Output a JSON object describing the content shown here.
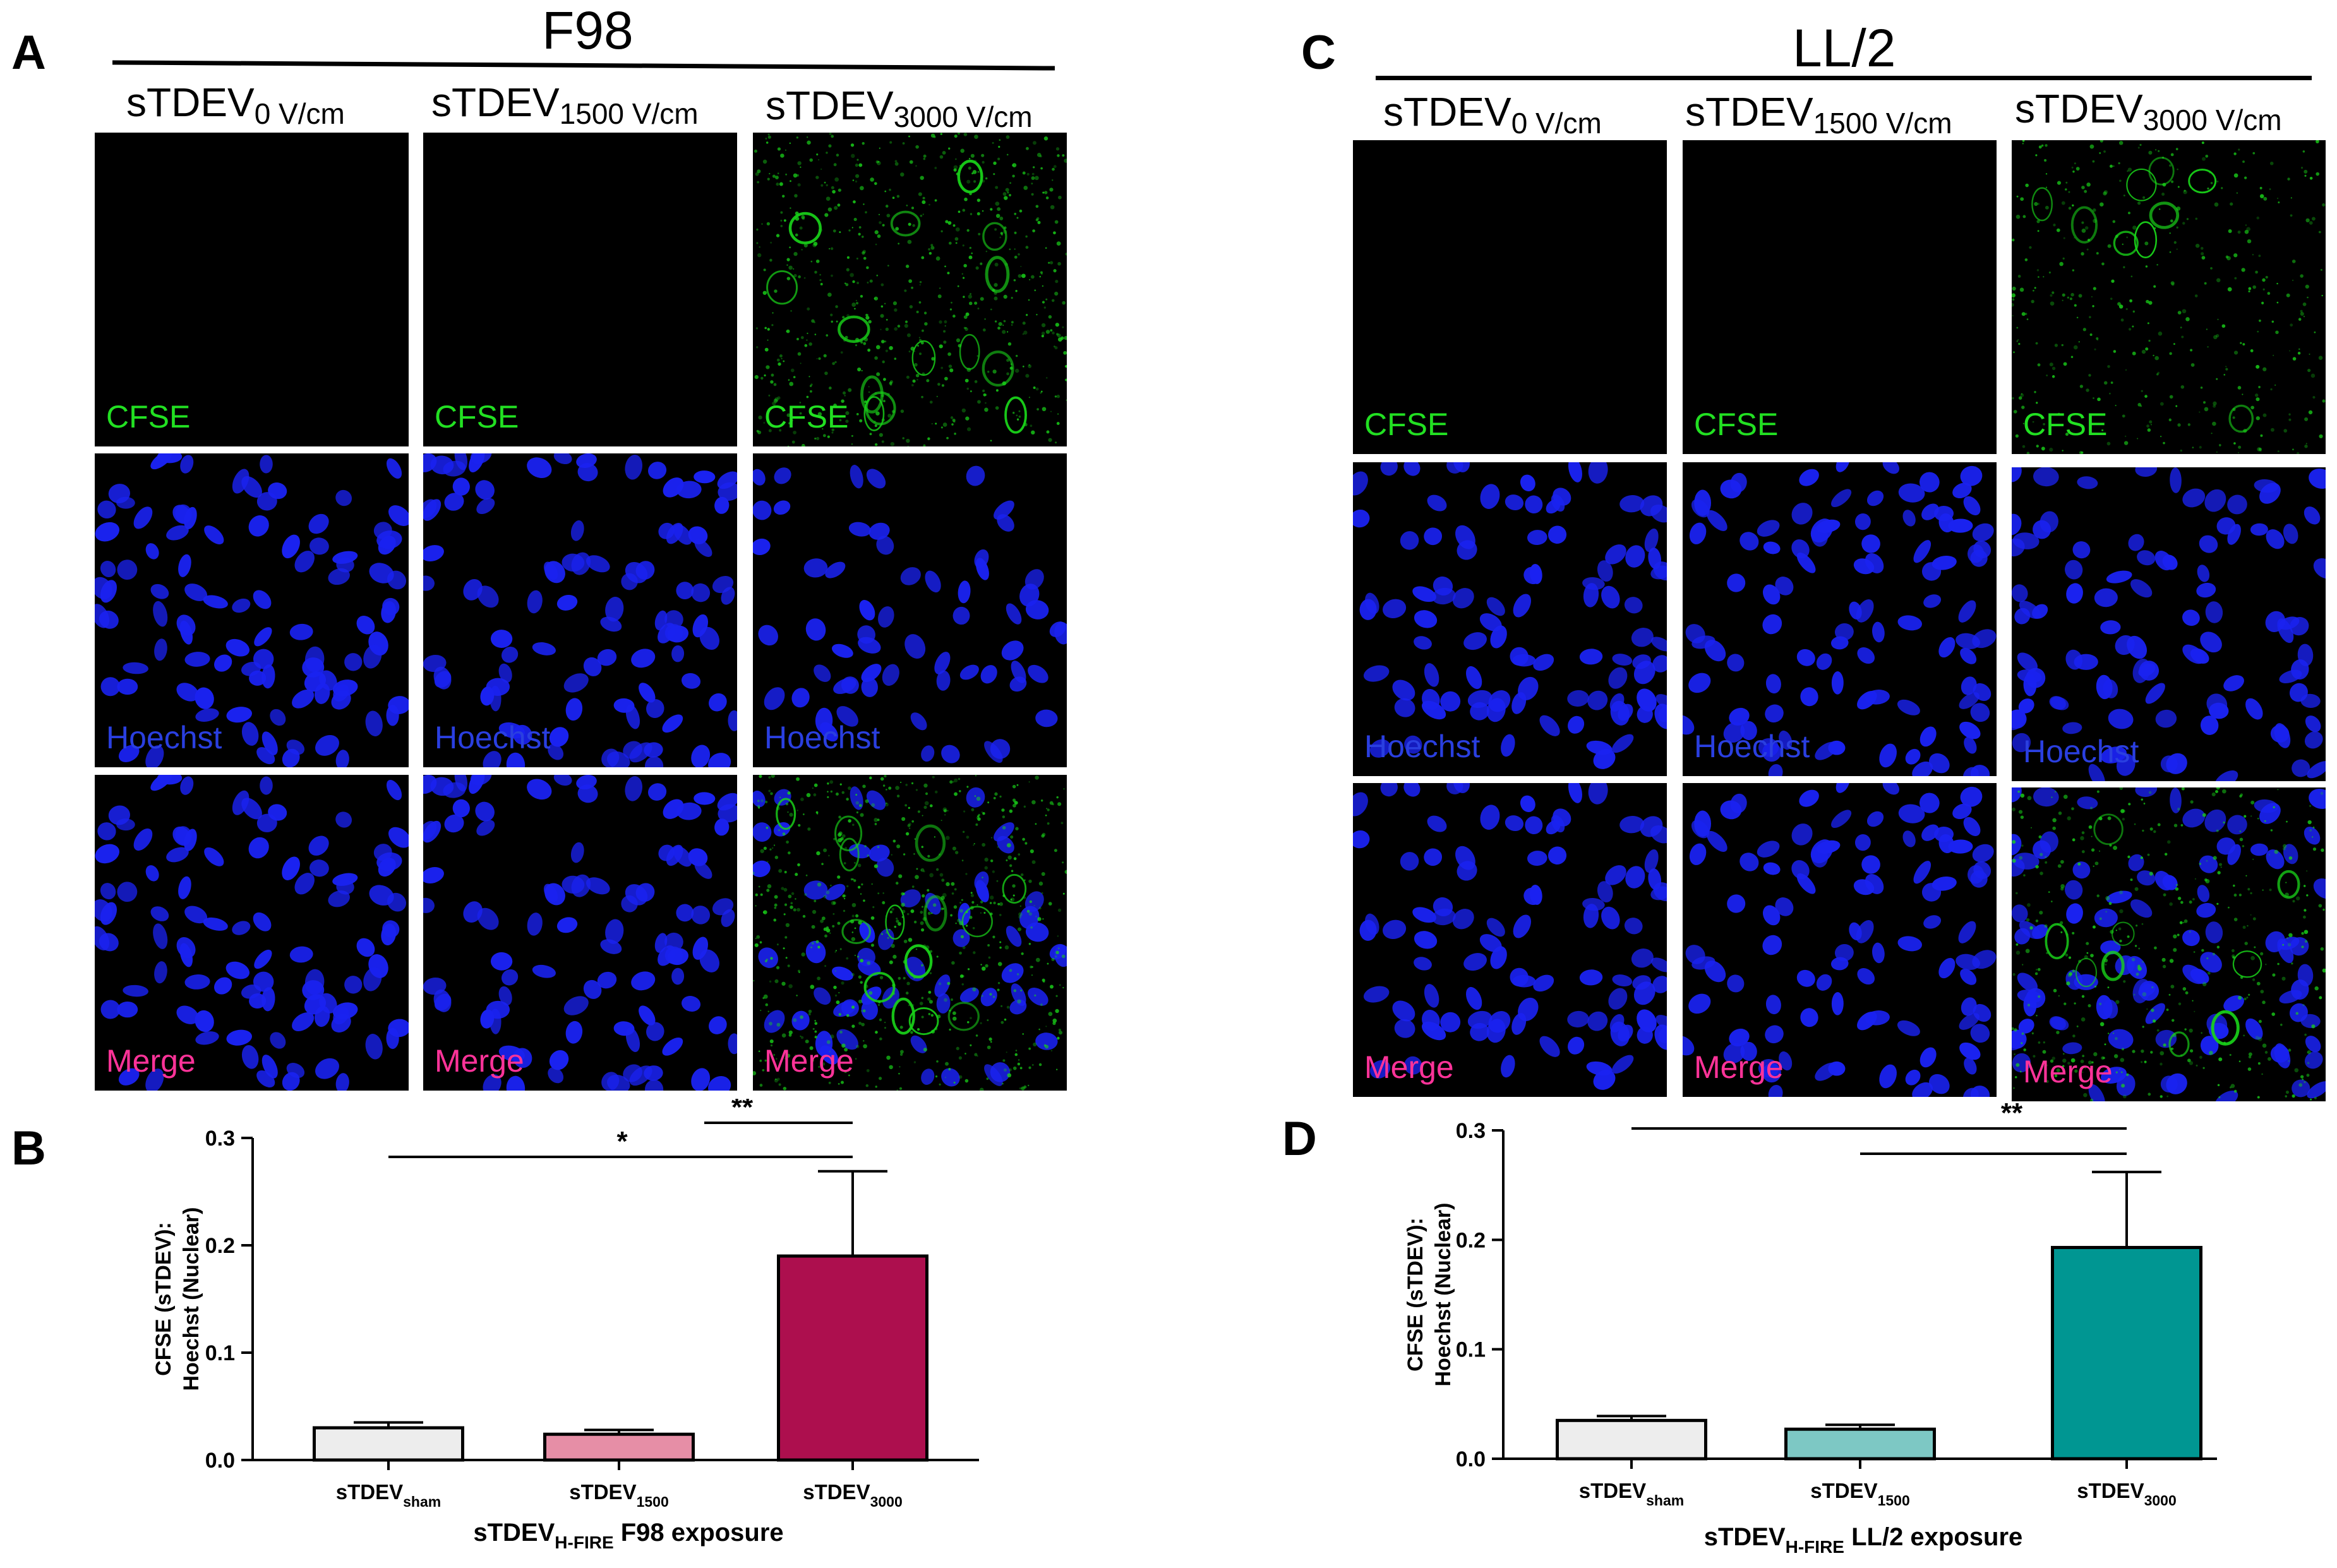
{
  "panels": {
    "A": {
      "letter": "A",
      "group_title": "F98",
      "columns": [
        {
          "prefix": "sTDEV",
          "sub": "0 V/cm"
        },
        {
          "prefix": "sTDEV",
          "sub": "1500 V/cm"
        },
        {
          "prefix": "sTDEV",
          "sub": "3000 V/cm"
        }
      ]
    },
    "C": {
      "letter": "C",
      "group_title": "LL/2",
      "columns": [
        {
          "prefix": "sTDEV",
          "sub": "0 V/cm"
        },
        {
          "prefix": "sTDEV",
          "sub": "1500 V/cm"
        },
        {
          "prefix": "sTDEV",
          "sub": "3000 V/cm"
        }
      ]
    },
    "B": {
      "letter": "B"
    },
    "D": {
      "letter": "D"
    }
  },
  "channel_labels": {
    "cfse": "CFSE",
    "hoechst": "Hoechst",
    "merge": "Merge"
  },
  "colors": {
    "cfse_label": "#22e022",
    "hoechst_label": "#2a3fe0",
    "merge_label": "#ff3399",
    "nucleus": "#1a22f0",
    "cfse_signal": "#19d319",
    "f98_sham": "#ededed",
    "f98_1500": "#e68ea6",
    "f98_3000": "#ad0f4e",
    "ll2_sham": "#ededed",
    "ll2_1500": "#7dc8c4",
    "ll2_3000": "#009692"
  },
  "chart_data": [
    {
      "type": "bar",
      "panel": "B",
      "ylabel_line1": "CFSE (sTDEV):",
      "ylabel_line2": "Hoechst (Nuclear)",
      "xlabel_prefix": "sTDEV",
      "xlabel_sub": "H-FIRE",
      "xlabel_suffix": " F98 exposure",
      "categories": [
        {
          "prefix": "sTDEV",
          "sub": "sham"
        },
        {
          "prefix": "sTDEV",
          "sub": "1500"
        },
        {
          "prefix": "sTDEV",
          "sub": "3000"
        }
      ],
      "values": [
        0.03,
        0.024,
        0.19
      ],
      "errors": [
        0.005,
        0.004,
        0.079
      ],
      "ylim": [
        0,
        0.3
      ],
      "yticks": [
        "0.0",
        "0.1",
        "0.2",
        "0.3"
      ],
      "significance": [
        {
          "from": 1,
          "to": 2,
          "label": "**"
        },
        {
          "from": 0,
          "to": 2,
          "label": "*"
        }
      ]
    },
    {
      "type": "bar",
      "panel": "D",
      "ylabel_line1": "CFSE (sTDEV):",
      "ylabel_line2": "Hoechst (Nuclear)",
      "xlabel_prefix": "sTDEV",
      "xlabel_sub": "H-FIRE",
      "xlabel_suffix": " LL/2 exposure",
      "categories": [
        {
          "prefix": "sTDEV",
          "sub": "sham"
        },
        {
          "prefix": "sTDEV",
          "sub": "1500"
        },
        {
          "prefix": "sTDEV",
          "sub": "3000"
        }
      ],
      "values": [
        0.035,
        0.027,
        0.193
      ],
      "errors": [
        0.004,
        0.004,
        0.069
      ],
      "ylim": [
        0,
        0.3
      ],
      "yticks": [
        "0.0",
        "0.1",
        "0.2",
        "0.3"
      ],
      "significance": [
        {
          "from": 0,
          "to": 2,
          "label": "**"
        },
        {
          "from": 1,
          "to": 2,
          "label": ""
        }
      ]
    }
  ]
}
